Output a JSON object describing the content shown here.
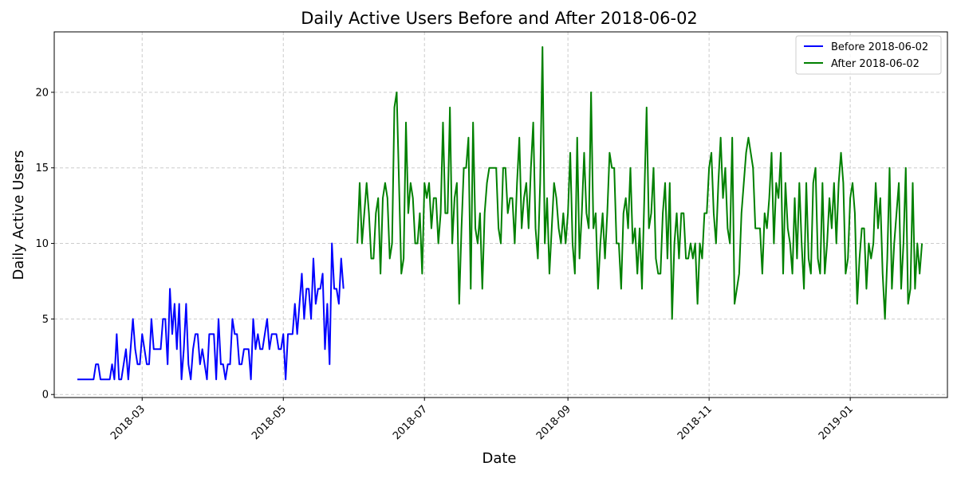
{
  "chart_data": {
    "type": "line",
    "title": "Daily Active Users Before and After 2018-06-02",
    "xlabel": "Date",
    "ylabel": "Daily Active Users",
    "x_range": [
      "2018-01-22",
      "2019-02-12"
    ],
    "ylim": [
      -0.2,
      24
    ],
    "yticks": [
      0,
      5,
      10,
      15,
      20
    ],
    "xticks": [
      "2018-03",
      "2018-05",
      "2018-07",
      "2018-09",
      "2018-11",
      "2019-01"
    ],
    "xtick_dates": [
      "2018-03-01",
      "2018-05-01",
      "2018-07-01",
      "2018-09-01",
      "2018-11-01",
      "2019-01-01"
    ],
    "grid": true,
    "legend_position": "top-right",
    "series": [
      {
        "name": "Before 2018-06-02",
        "color": "#0000ff",
        "x_start": "2018-02-01",
        "values": [
          1,
          1,
          1,
          1,
          1,
          1,
          1,
          1,
          2,
          2,
          1,
          1,
          1,
          1,
          1,
          2,
          1,
          4,
          1,
          1,
          2,
          3,
          1,
          3,
          5,
          3,
          2,
          2,
          4,
          3,
          2,
          2,
          5,
          3,
          3,
          3,
          3,
          5,
          5,
          2,
          7,
          4,
          6,
          3,
          6,
          1,
          3,
          6,
          2,
          1,
          3,
          4,
          4,
          2,
          3,
          2,
          1,
          4,
          4,
          4,
          1,
          5,
          2,
          2,
          1,
          2,
          2,
          5,
          4,
          4,
          2,
          2,
          3,
          3,
          3,
          1,
          5,
          3,
          4,
          3,
          3,
          4,
          5,
          3,
          4,
          4,
          4,
          3,
          3,
          4,
          1,
          4,
          4,
          4,
          6,
          4,
          6,
          8,
          5,
          7,
          7,
          5,
          9,
          6,
          7,
          7,
          8,
          3,
          6,
          2,
          10,
          7,
          7,
          6,
          9,
          7
        ]
      },
      {
        "name": "After 2018-06-02",
        "color": "#008000",
        "x_start": "2018-06-02",
        "values": [
          10,
          14,
          10,
          12,
          14,
          12,
          9,
          9,
          12,
          13,
          8,
          13,
          14,
          13,
          9,
          10,
          19,
          20,
          14,
          8,
          9,
          18,
          12,
          14,
          13,
          10,
          10,
          12,
          8,
          14,
          13,
          14,
          11,
          13,
          13,
          10,
          12,
          18,
          12,
          12,
          19,
          10,
          13,
          14,
          6,
          11,
          15,
          15,
          17,
          7,
          18,
          11,
          10,
          12,
          7,
          12,
          14,
          15,
          15,
          15,
          15,
          11,
          10,
          15,
          15,
          12,
          13,
          13,
          10,
          14,
          17,
          11,
          13,
          14,
          11,
          15,
          18,
          11,
          9,
          14,
          23,
          10,
          13,
          8,
          11,
          14,
          13,
          11,
          10,
          12,
          10,
          12,
          16,
          10,
          8,
          17,
          9,
          12,
          16,
          12,
          11,
          20,
          11,
          12,
          7,
          10,
          12,
          9,
          12,
          16,
          15,
          15,
          10,
          10,
          7,
          12,
          13,
          11,
          15,
          10,
          11,
          8,
          11,
          7,
          13,
          19,
          11,
          12,
          15,
          9,
          8,
          8,
          12,
          14,
          9,
          14,
          5,
          10,
          12,
          9,
          12,
          12,
          9,
          9,
          10,
          9,
          10,
          6,
          10,
          9,
          12,
          12,
          15,
          16,
          12,
          10,
          14,
          17,
          13,
          15,
          11,
          10,
          17,
          6,
          7,
          8,
          12,
          14,
          16,
          17,
          16,
          15,
          11,
          11,
          11,
          8,
          12,
          11,
          13,
          16,
          10,
          14,
          13,
          16,
          8,
          14,
          11,
          10,
          8,
          13,
          9,
          14,
          10,
          7,
          14,
          9,
          8,
          14,
          15,
          9,
          8,
          14,
          8,
          10,
          13,
          11,
          14,
          10,
          14,
          16,
          14,
          8,
          9,
          13,
          14,
          12,
          6,
          9,
          11,
          11,
          7,
          10,
          9,
          10,
          14,
          11,
          13,
          8,
          5,
          9,
          15,
          7,
          10,
          12,
          14,
          7,
          10,
          15,
          6,
          7,
          14,
          7,
          10,
          8,
          10
        ]
      }
    ]
  }
}
